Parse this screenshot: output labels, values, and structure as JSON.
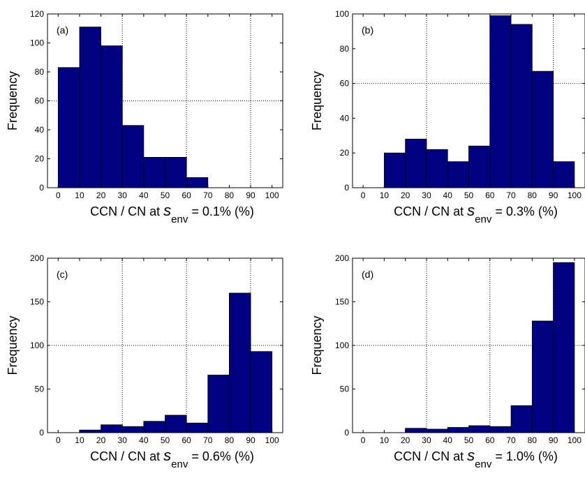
{
  "chart_data": [
    {
      "type": "bar",
      "panel_label": "(a)",
      "ylabel": "Frequency",
      "xlabel": {
        "prefix": "CCN / CN at ",
        "var": "s",
        "sub": "env",
        "suffix": " = 0.1% (%)"
      },
      "bins": [
        [
          0,
          10
        ],
        [
          10,
          20
        ],
        [
          20,
          30
        ],
        [
          30,
          40
        ],
        [
          40,
          50
        ],
        [
          50,
          60
        ],
        [
          60,
          70
        ],
        [
          70,
          80
        ],
        [
          80,
          90
        ],
        [
          90,
          100
        ]
      ],
      "values": [
        83,
        111,
        98,
        43,
        21,
        21,
        7,
        0,
        0,
        0
      ],
      "xlim": [
        -5,
        105
      ],
      "ylim": [
        0,
        120
      ],
      "xticks": [
        0,
        10,
        20,
        30,
        40,
        50,
        60,
        70,
        80,
        90,
        100
      ],
      "yticks": [
        0,
        20,
        40,
        60,
        80,
        100,
        120
      ],
      "grid": true,
      "bar_color": "#000080"
    },
    {
      "type": "bar",
      "panel_label": "(b)",
      "ylabel": "Frequency",
      "xlabel": {
        "prefix": "CCN / CN at ",
        "var": "s",
        "sub": "env",
        "suffix": " = 0.3% (%)"
      },
      "bins": [
        [
          0,
          10
        ],
        [
          10,
          20
        ],
        [
          20,
          30
        ],
        [
          30,
          40
        ],
        [
          40,
          50
        ],
        [
          50,
          60
        ],
        [
          60,
          70
        ],
        [
          70,
          80
        ],
        [
          80,
          90
        ],
        [
          90,
          100
        ]
      ],
      "values": [
        0,
        20,
        28,
        22,
        15,
        24,
        99,
        94,
        67,
        15
      ],
      "xlim": [
        -5,
        105
      ],
      "ylim": [
        0,
        100
      ],
      "xticks": [
        0,
        10,
        20,
        30,
        40,
        50,
        60,
        70,
        80,
        90,
        100
      ],
      "yticks": [
        0,
        20,
        40,
        60,
        80,
        100
      ],
      "grid": true,
      "bar_color": "#000080"
    },
    {
      "type": "bar",
      "panel_label": "(c)",
      "ylabel": "Frequency",
      "xlabel": {
        "prefix": "CCN / CN at ",
        "var": "s",
        "sub": "env",
        "suffix": " = 0.6% (%)"
      },
      "bins": [
        [
          0,
          10
        ],
        [
          10,
          20
        ],
        [
          20,
          30
        ],
        [
          30,
          40
        ],
        [
          40,
          50
        ],
        [
          50,
          60
        ],
        [
          60,
          70
        ],
        [
          70,
          80
        ],
        [
          80,
          90
        ],
        [
          90,
          100
        ]
      ],
      "values": [
        0,
        3,
        9,
        7,
        13,
        20,
        11,
        66,
        160,
        93
      ],
      "xlim": [
        -5,
        105
      ],
      "ylim": [
        0,
        200
      ],
      "xticks": [
        0,
        10,
        20,
        30,
        40,
        50,
        60,
        70,
        80,
        90,
        100
      ],
      "yticks": [
        0,
        50,
        100,
        150,
        200
      ],
      "grid": true,
      "bar_color": "#000080"
    },
    {
      "type": "bar",
      "panel_label": "(d)",
      "ylabel": "Frequency",
      "xlabel": {
        "prefix": "CCN / CN at ",
        "var": "s",
        "sub": "env",
        "suffix": " = 1.0% (%)"
      },
      "bins": [
        [
          0,
          10
        ],
        [
          10,
          20
        ],
        [
          20,
          30
        ],
        [
          30,
          40
        ],
        [
          40,
          50
        ],
        [
          50,
          60
        ],
        [
          60,
          70
        ],
        [
          70,
          80
        ],
        [
          80,
          90
        ],
        [
          90,
          100
        ]
      ],
      "values": [
        0,
        0,
        5,
        4,
        6,
        8,
        7,
        31,
        128,
        195
      ],
      "xlim": [
        -5,
        105
      ],
      "ylim": [
        0,
        200
      ],
      "xticks": [
        0,
        10,
        20,
        30,
        40,
        50,
        60,
        70,
        80,
        90,
        100
      ],
      "yticks": [
        0,
        50,
        100,
        150,
        200
      ],
      "grid": true,
      "bar_color": "#000080"
    }
  ]
}
